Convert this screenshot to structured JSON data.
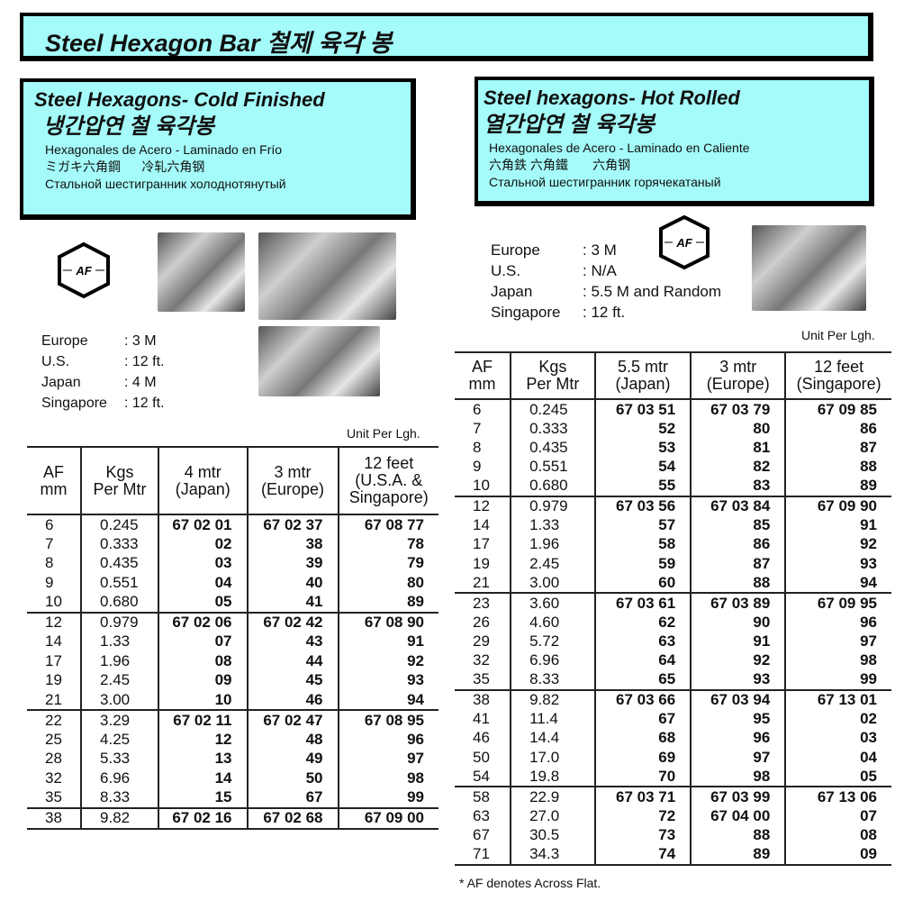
{
  "title": "Steel Hexagon Bar   철제 육각 봉",
  "colors": {
    "box_background": "#a4fbf9",
    "border": "#000000"
  },
  "cold": {
    "title_en": "Steel Hexagons- Cold Finished",
    "title_ko": "냉간압연 철 육각봉",
    "line_es": "Hexagonales de Acero - Laminado en Frío",
    "line_jp_cn": "ミガキ六角鋼      冷轧六角钢",
    "line_ru": "Стальной шестигранник холоднотянутый",
    "icon": "hexagon-af-icon",
    "icon_label": "AF",
    "specs": [
      {
        "k": "Europe",
        "v": ": 3 M"
      },
      {
        "k": "U.S.",
        "v": ": 12 ft."
      },
      {
        "k": "Japan",
        "v": ": 4 M"
      },
      {
        "k": "Singapore",
        "v": ": 12 ft."
      }
    ],
    "unit": "Unit Per Lgh.",
    "headers": [
      [
        "AF",
        "mm"
      ],
      [
        "Kgs",
        "Per Mtr"
      ],
      [
        "4 mtr",
        "(Japan)"
      ],
      [
        "3 mtr",
        "(Europe)"
      ],
      [
        "12 feet",
        "(U.S.A. &",
        "Singapore)"
      ]
    ],
    "groups": [
      [
        [
          "6",
          "0.245",
          "67 02 01",
          "67 02 37",
          "67 08 77"
        ],
        [
          "7",
          "0.333",
          "02",
          "38",
          "78"
        ],
        [
          "8",
          "0.435",
          "03",
          "39",
          "79"
        ],
        [
          "9",
          "0.551",
          "04",
          "40",
          "80"
        ],
        [
          "10",
          "0.680",
          "05",
          "41",
          "89"
        ]
      ],
      [
        [
          "12",
          "0.979",
          "67 02 06",
          "67 02 42",
          "67 08 90"
        ],
        [
          "14",
          "1.33",
          "07",
          "43",
          "91"
        ],
        [
          "17",
          "1.96",
          "08",
          "44",
          "92"
        ],
        [
          "19",
          "2.45",
          "09",
          "45",
          "93"
        ],
        [
          "21",
          "3.00",
          "10",
          "46",
          "94"
        ]
      ],
      [
        [
          "22",
          "3.29",
          "67 02 11",
          "67 02 47",
          "67 08 95"
        ],
        [
          "25",
          "4.25",
          "12",
          "48",
          "96"
        ],
        [
          "28",
          "5.33",
          "13",
          "49",
          "97"
        ],
        [
          "32",
          "6.96",
          "14",
          "50",
          "98"
        ],
        [
          "35",
          "8.33",
          "15",
          "67",
          "99"
        ]
      ],
      [
        [
          "38",
          "9.82",
          "67 02 16",
          "67 02 68",
          "67 09 00"
        ]
      ]
    ]
  },
  "hot": {
    "title_en": "Steel hexagons- Hot Rolled",
    "title_ko": "열간압연 철 육각봉",
    "line_es": "Hexagonales de Acero  - Laminado en Caliente",
    "line_jp_cn": "六角鉄 六角鐵       六角钢",
    "line_ru": "Стальной шестигранник  горячекатаный",
    "icon": "hexagon-af-icon",
    "icon_label": "AF",
    "specs": [
      {
        "k": "Europe",
        "v": ": 3 M"
      },
      {
        "k": "U.S.",
        "v": ": N/A"
      },
      {
        "k": "Japan",
        "v": ": 5.5 M and Random"
      },
      {
        "k": "Singapore",
        "v": ": 12 ft."
      }
    ],
    "unit": "Unit Per Lgh.",
    "headers": [
      [
        "AF",
        "mm"
      ],
      [
        "Kgs",
        "Per Mtr"
      ],
      [
        "5.5 mtr",
        "(Japan)"
      ],
      [
        "3 mtr",
        "(Europe)"
      ],
      [
        "12 feet",
        "(Singapore)"
      ]
    ],
    "groups": [
      [
        [
          "6",
          "0.245",
          "67 03 51",
          "67 03 79",
          "67 09 85"
        ],
        [
          "7",
          "0.333",
          "52",
          "80",
          "86"
        ],
        [
          "8",
          "0.435",
          "53",
          "81",
          "87"
        ],
        [
          "9",
          "0.551",
          "54",
          "82",
          "88"
        ],
        [
          "10",
          "0.680",
          "55",
          "83",
          "89"
        ]
      ],
      [
        [
          "12",
          "0.979",
          "67 03 56",
          "67 03 84",
          "67 09 90"
        ],
        [
          "14",
          "1.33",
          "57",
          "85",
          "91"
        ],
        [
          "17",
          "1.96",
          "58",
          "86",
          "92"
        ],
        [
          "19",
          "2.45",
          "59",
          "87",
          "93"
        ],
        [
          "21",
          "3.00",
          "60",
          "88",
          "94"
        ]
      ],
      [
        [
          "23",
          "3.60",
          "67 03 61",
          "67 03 89",
          "67 09 95"
        ],
        [
          "26",
          "4.60",
          "62",
          "90",
          "96"
        ],
        [
          "29",
          "5.72",
          "63",
          "91",
          "97"
        ],
        [
          "32",
          "6.96",
          "64",
          "92",
          "98"
        ],
        [
          "35",
          "8.33",
          "65",
          "93",
          "99"
        ]
      ],
      [
        [
          "38",
          "9.82",
          "67 03 66",
          "67 03 94",
          "67 13 01"
        ],
        [
          "41",
          "11.4",
          "67",
          "95",
          "02"
        ],
        [
          "46",
          "14.4",
          "68",
          "96",
          "03"
        ],
        [
          "50",
          "17.0",
          "69",
          "97",
          "04"
        ],
        [
          "54",
          "19.8",
          "70",
          "98",
          "05"
        ]
      ],
      [
        [
          "58",
          "22.9",
          "67 03 71",
          "67 03 99",
          "67 13 06"
        ],
        [
          "63",
          "27.0",
          "72",
          "67 04 00",
          "07"
        ],
        [
          "67",
          "30.5",
          "73",
          "88",
          "08"
        ],
        [
          "71",
          "34.3",
          "74",
          "89",
          "09"
        ]
      ]
    ],
    "footnote": "* AF denotes Across Flat."
  }
}
